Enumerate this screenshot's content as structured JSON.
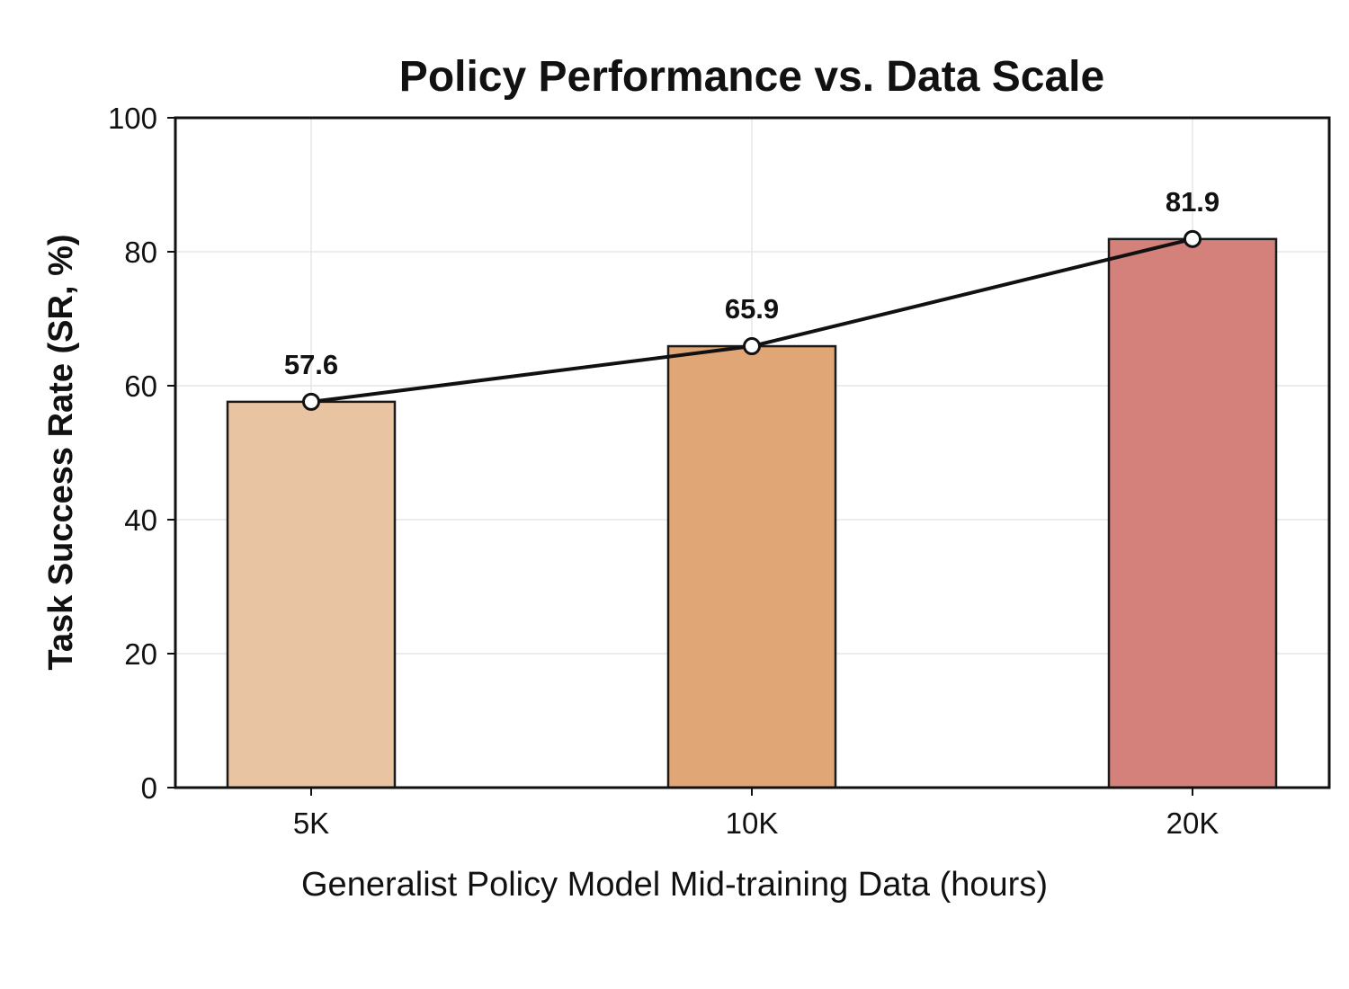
{
  "chart_data": {
    "type": "bar",
    "title": "Policy Performance vs. Data Scale",
    "xlabel": "Generalist Policy Model Mid-training Data (hours)",
    "ylabel": "Task Success Rate (SR, %)",
    "categories": [
      "5K",
      "10K",
      "20K"
    ],
    "values": [
      57.6,
      65.9,
      81.9
    ],
    "data_labels": [
      "57.6",
      "65.9",
      "81.9"
    ],
    "bar_colors": [
      "#e9c4a3",
      "#e0a676",
      "#d4817b"
    ],
    "ylim": [
      0,
      100
    ],
    "yticks": [
      0,
      20,
      40,
      60,
      80,
      100
    ],
    "ytick_labels": [
      "0",
      "20",
      "40",
      "60",
      "80",
      "100"
    ],
    "grid": true,
    "overlay_line": {
      "type": "line",
      "values": [
        57.6,
        65.9,
        81.9
      ],
      "color": "#111111",
      "marker": "circle",
      "marker_fill": "#ffffff"
    }
  }
}
